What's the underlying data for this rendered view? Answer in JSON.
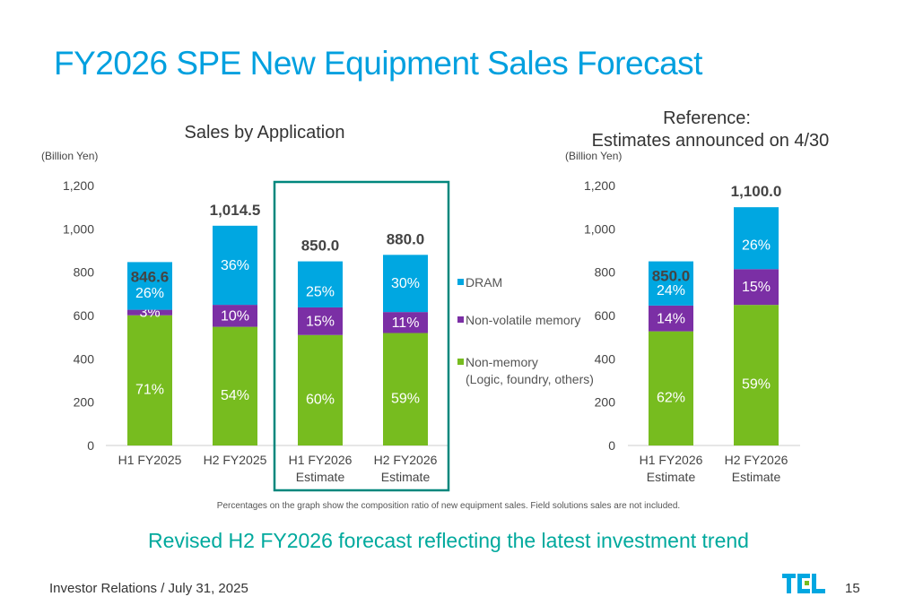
{
  "title": "FY2026 SPE New Equipment Sales Forecast",
  "subtitle": "Revised H2 FY2026 forecast reflecting the latest investment trend",
  "footnote": "Percentages on the graph show the composition ratio of new equipment sales. Field solutions sales are not included.",
  "footer": "Investor Relations / July 31, 2025",
  "page_number": "15",
  "logo_text": "TEL",
  "colors": {
    "dram": "#00A7E1",
    "nvm": "#7B2FA5",
    "nonmem": "#77BC1F",
    "title": "#00A0DF",
    "highlight_box": "#00877D"
  },
  "chart_data": [
    {
      "type": "bar",
      "stacked": true,
      "title": "Sales by Application",
      "ylabel": "(Billion Yen)",
      "ylim": [
        0,
        1200
      ],
      "yticks": [
        "0",
        "200",
        "400",
        "600",
        "800",
        "1,000",
        "1,200"
      ],
      "categories": [
        [
          "H1 FY2025",
          ""
        ],
        [
          "H2 FY2025",
          ""
        ],
        [
          "H1 FY2026",
          "Estimate"
        ],
        [
          "H2 FY2026",
          "Estimate"
        ]
      ],
      "totals": [
        846.6,
        1014.5,
        850.0,
        880.0
      ],
      "total_labels": [
        "846.6",
        "1,014.5",
        "850.0",
        "880.0"
      ],
      "highlighted_categories": [
        2,
        3
      ],
      "series": [
        {
          "name": "Non-memory",
          "key": "nonmem",
          "percent": [
            71,
            54,
            60,
            59
          ],
          "labels": [
            "71%",
            "54%",
            "60%",
            "59%"
          ]
        },
        {
          "name": "Non-volatile memory",
          "key": "nvm",
          "percent": [
            3,
            10,
            15,
            11
          ],
          "labels": [
            "3%",
            "10%",
            "15%",
            "11%"
          ]
        },
        {
          "name": "DRAM",
          "key": "dram",
          "percent": [
            26,
            36,
            25,
            30
          ],
          "labels": [
            "26%",
            "36%",
            "25%",
            "30%"
          ]
        }
      ],
      "legend": [
        "DRAM",
        "Non-volatile memory",
        "Non-memory",
        "(Logic, foundry, others)"
      ]
    },
    {
      "type": "bar",
      "stacked": true,
      "title": [
        "Reference:",
        "Estimates announced on 4/30"
      ],
      "ylabel": "(Billion Yen)",
      "ylim": [
        0,
        1200
      ],
      "yticks": [
        "0",
        "200",
        "400",
        "600",
        "800",
        "1,000",
        "1,200"
      ],
      "categories": [
        [
          "H1 FY2026",
          "Estimate"
        ],
        [
          "H2 FY2026",
          "Estimate"
        ]
      ],
      "totals": [
        850.0,
        1100.0
      ],
      "total_labels": [
        "850.0",
        "1,100.0"
      ],
      "series": [
        {
          "name": "Non-memory",
          "key": "nonmem",
          "percent": [
            62,
            59
          ],
          "labels": [
            "62%",
            "59%"
          ]
        },
        {
          "name": "Non-volatile memory",
          "key": "nvm",
          "percent": [
            14,
            15
          ],
          "labels": [
            "14%",
            "15%"
          ]
        },
        {
          "name": "DRAM",
          "key": "dram",
          "percent": [
            24,
            26
          ],
          "labels": [
            "24%",
            "26%"
          ]
        }
      ]
    }
  ]
}
